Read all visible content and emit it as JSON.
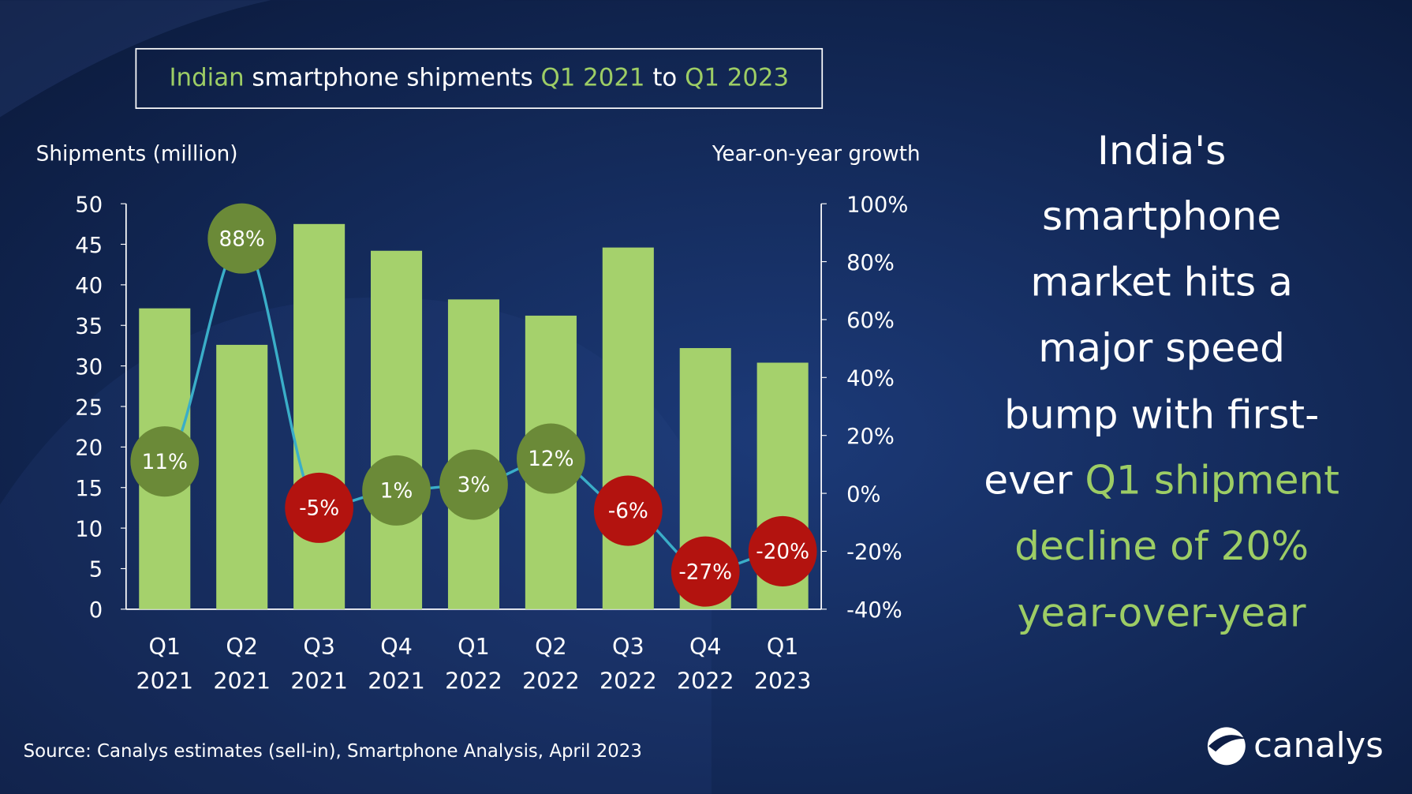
{
  "title": {
    "part1": "Indian",
    "part2": " smartphone shipments ",
    "part3": "Q1 2021",
    "part4": " to ",
    "part5": "Q1 2023"
  },
  "headline": {
    "lines": [
      "India's",
      "smartphone",
      "market hits a",
      "major speed",
      "bump with first-"
    ],
    "line6_white": "ever ",
    "line6_green": "Q1 shipment",
    "line7": "decline of 20%",
    "line8": "year-over-year"
  },
  "source": "Source: Canalys estimates (sell-in), Smartphone Analysis, April 2023",
  "logo": "canalys",
  "colors": {
    "bar": "#a5d16c",
    "positive": "#6b8a38",
    "negative": "#b3130f",
    "line": "#3aaec8",
    "accent": "#9dcd65",
    "background": "#0d1d45"
  },
  "chart_data": {
    "type": "bar+line",
    "ylabel": "Shipments (million)",
    "y2label": "Year-on-year growth",
    "ylim": [
      0,
      50
    ],
    "yticks": [
      "0",
      "5",
      "10",
      "15",
      "20",
      "25",
      "30",
      "35",
      "40",
      "45",
      "50"
    ],
    "y2lim": [
      -40,
      100
    ],
    "y2ticks": [
      "-40%",
      "-20%",
      "0%",
      "20%",
      "40%",
      "60%",
      "80%",
      "100%"
    ],
    "categories": [
      [
        "Q1",
        "2021"
      ],
      [
        "Q2",
        "2021"
      ],
      [
        "Q3",
        "2021"
      ],
      [
        "Q4",
        "2021"
      ],
      [
        "Q1",
        "2022"
      ],
      [
        "Q2",
        "2022"
      ],
      [
        "Q3",
        "2022"
      ],
      [
        "Q4",
        "2022"
      ],
      [
        "Q1",
        "2023"
      ]
    ],
    "shipments": [
      37.1,
      32.6,
      47.5,
      44.2,
      38.2,
      36.2,
      44.6,
      32.2,
      30.4
    ],
    "growth": [
      11,
      88,
      -5,
      1,
      3,
      12,
      -6,
      -27,
      -20
    ],
    "growth_labels": [
      "11%",
      "88%",
      "-5%",
      "1%",
      "3%",
      "12%",
      "-6%",
      "-27%",
      "-20%"
    ],
    "grid": false
  }
}
